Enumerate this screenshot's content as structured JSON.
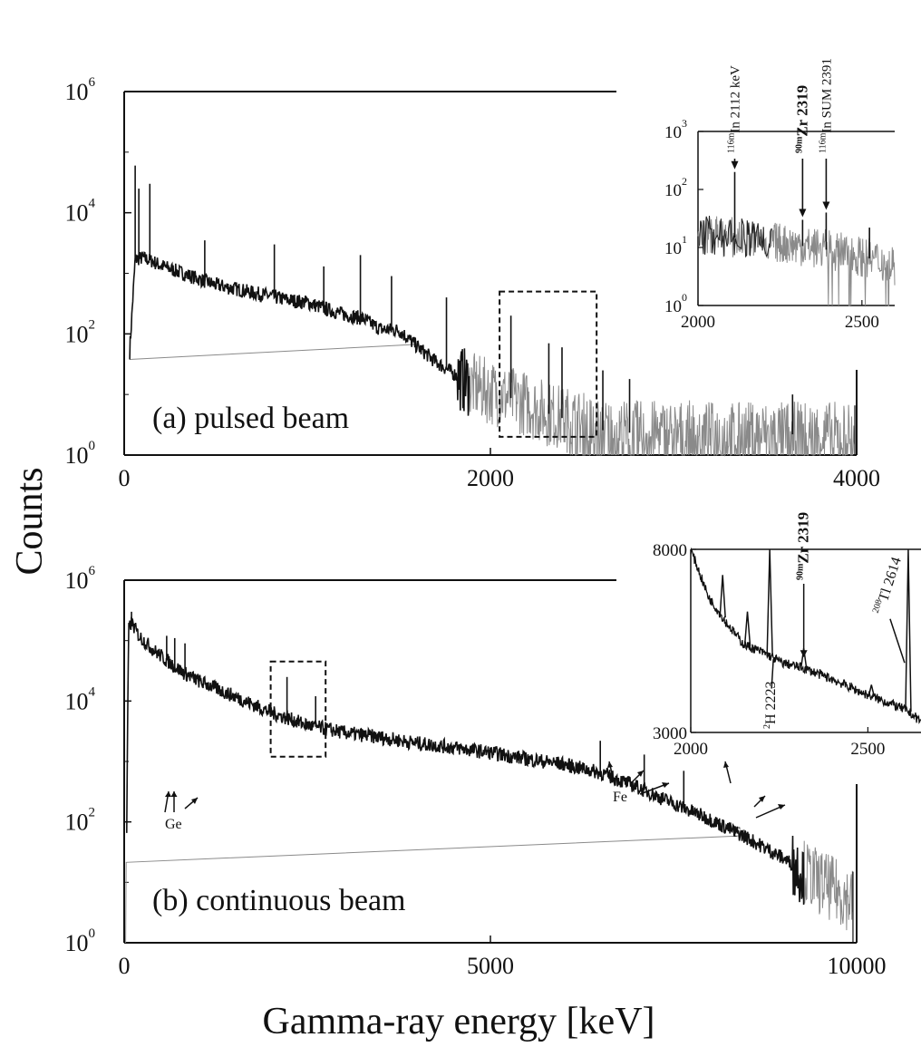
{
  "figure": {
    "ylabel": "Counts",
    "xlabel": "Gamma-ray energy [keV]"
  },
  "chart_data": [
    {
      "id": "a",
      "type": "line",
      "title": "(a) pulsed beam",
      "xlabel": "Gamma-ray energy [keV]",
      "ylabel": "Counts",
      "yscale": "log",
      "xlim": [
        0,
        4000
      ],
      "ylim": [
        1,
        1000000
      ],
      "x_ticks": [
        "0",
        "2000",
        "4000"
      ],
      "y_ticks": [
        {
          "base": "10",
          "exp": "0"
        },
        {
          "base": "10",
          "exp": "2"
        },
        {
          "base": "10",
          "exp": "4"
        },
        {
          "base": "10",
          "exp": "6"
        }
      ],
      "series": [
        {
          "x": [
            30,
            60,
            100,
            150,
            200,
            300,
            400,
            500,
            600,
            700,
            800,
            900,
            1000,
            1100,
            1200,
            1300,
            1400,
            1500,
            1550,
            1600,
            1700,
            1800,
            1900,
            2000,
            2100,
            2200,
            2300,
            2400,
            2500,
            2600,
            2700,
            2800,
            3000,
            3200,
            3400,
            3600,
            3800,
            3990
          ],
          "y": [
            50,
            1700,
            1800,
            1600,
            1350,
            1050,
            820,
            640,
            560,
            480,
            420,
            360,
            330,
            260,
            210,
            180,
            120,
            115,
            85,
            62,
            35,
            22,
            14,
            11,
            9,
            7,
            5,
            4,
            3.2,
            2.6,
            2.4,
            2.3,
            2.3,
            2.2,
            2.2,
            2.2,
            2.2,
            2.2
          ]
        }
      ],
      "peaks": [
        {
          "x": 60,
          "y": 60000
        },
        {
          "x": 80,
          "y": 25000
        },
        {
          "x": 140,
          "y": 30000
        },
        {
          "x": 440,
          "y": 3500
        },
        {
          "x": 820,
          "y": 3000
        },
        {
          "x": 1090,
          "y": 1300
        },
        {
          "x": 1290,
          "y": 2000
        },
        {
          "x": 1460,
          "y": 900
        },
        {
          "x": 1760,
          "y": 400
        },
        {
          "x": 2112,
          "y": 200
        },
        {
          "x": 2319,
          "y": 70
        },
        {
          "x": 2391,
          "y": 60
        },
        {
          "x": 2614,
          "y": 25
        },
        {
          "x": 2760,
          "y": 18
        },
        {
          "x": 3650,
          "y": 10
        }
      ],
      "highlight_box": {
        "x": [
          2050,
          2580
        ],
        "y": [
          2,
          500
        ]
      },
      "inset": {
        "xlim": [
          2000,
          2600
        ],
        "ylim": [
          1,
          1000
        ],
        "yscale": "log",
        "x_ticks": [
          "2000",
          "2500"
        ],
        "y_ticks": [
          {
            "base": "10",
            "exp": "0"
          },
          {
            "base": "10",
            "exp": "1"
          },
          {
            "base": "10",
            "exp": "2"
          },
          {
            "base": "10",
            "exp": "3"
          }
        ],
        "background": {
          "x": [
            2000,
            2100,
            2200,
            2300,
            2400,
            2500,
            2600
          ],
          "y": [
            17,
            15,
            13,
            11,
            9,
            7,
            5
          ]
        },
        "peaks": [
          {
            "x": 2112,
            "y": 200
          },
          {
            "x": 2319,
            "y": 30
          },
          {
            "x": 2391,
            "y": 40
          },
          {
            "x": 2523,
            "y": 22
          }
        ],
        "annotations": [
          {
            "pre": "116m",
            "text": "In 2112 keV",
            "x": 2112,
            "bold": false
          },
          {
            "pre": "90m",
            "text": "Zr 2319",
            "x": 2319,
            "bold": true
          },
          {
            "pre": "116m",
            "text": "In SUM 2391",
            "x": 2391,
            "bold": false
          }
        ]
      }
    },
    {
      "id": "b",
      "type": "line",
      "title": "(b) continuous beam",
      "xlabel": "Gamma-ray energy [keV]",
      "ylabel": "Counts",
      "yscale": "log",
      "xlim": [
        0,
        10000
      ],
      "ylim": [
        1,
        1000000
      ],
      "x_ticks": [
        "0",
        "5000",
        "10000"
      ],
      "y_ticks": [
        {
          "base": "10",
          "exp": "0"
        },
        {
          "base": "10",
          "exp": "2"
        },
        {
          "base": "10",
          "exp": "4"
        },
        {
          "base": "10",
          "exp": "6"
        }
      ],
      "series": [
        {
          "x": [
            20,
            60,
            100,
            200,
            400,
            600,
            800,
            1000,
            1500,
            2000,
            2500,
            3000,
            3500,
            4000,
            4500,
            5000,
            5500,
            6000,
            6500,
            7000,
            7500,
            8000,
            8500,
            9000,
            9500,
            9950
          ],
          "y": [
            1,
            150000,
            200000,
            120000,
            70000,
            45000,
            30000,
            22000,
            12000,
            6500,
            4000,
            3000,
            2500,
            2000,
            1700,
            1400,
            1100,
            900,
            650,
            380,
            200,
            110,
            55,
            25,
            10,
            5
          ]
        }
      ],
      "peaks": [
        {
          "x": 100,
          "y": 300000
        },
        {
          "x": 580,
          "y": 120000
        },
        {
          "x": 690,
          "y": 110000
        },
        {
          "x": 830,
          "y": 90000
        },
        {
          "x": 2223,
          "y": 25000
        },
        {
          "x": 2614,
          "y": 12000
        },
        {
          "x": 6500,
          "y": 2200
        },
        {
          "x": 7100,
          "y": 1300
        },
        {
          "x": 7640,
          "y": 700
        }
      ],
      "highlight_box": {
        "x": [
          2000,
          2750
        ],
        "y": [
          1200,
          45000
        ]
      },
      "annotations": [
        {
          "text": "Ge"
        },
        {
          "text": "Fe"
        },
        {
          "text": "Fe"
        }
      ],
      "inset": {
        "xlim": [
          2000,
          2650
        ],
        "ylim": [
          3000,
          8000
        ],
        "yscale": "linear",
        "x_ticks": [
          "2000",
          "2500"
        ],
        "y_ticks": [
          "3000",
          "8000"
        ],
        "background": {
          "x": [
            2000,
            2050,
            2100,
            2150,
            2200,
            2260,
            2320,
            2400,
            2480,
            2560,
            2610,
            2650
          ],
          "y": [
            8000,
            6700,
            6000,
            5400,
            5200,
            4900,
            4750,
            4450,
            4100,
            3800,
            3600,
            3300
          ]
        },
        "peaks": [
          {
            "x": 2090,
            "y": 7300
          },
          {
            "x": 2160,
            "y": 6300
          },
          {
            "x": 2223,
            "y": 8000
          },
          {
            "x": 2319,
            "y": 5300
          },
          {
            "x": 2510,
            "y": 4300
          },
          {
            "x": 2614,
            "y": 8000
          }
        ],
        "annotations": [
          {
            "pre": "90m",
            "text": "Zr 2319",
            "x": 2319,
            "bold": true
          },
          {
            "pre": "208",
            "text": "Tl 2614",
            "x": 2614,
            "bold": false
          },
          {
            "pre": "2",
            "text": "H 2223",
            "x": 2223,
            "bold": false
          }
        ]
      }
    }
  ]
}
